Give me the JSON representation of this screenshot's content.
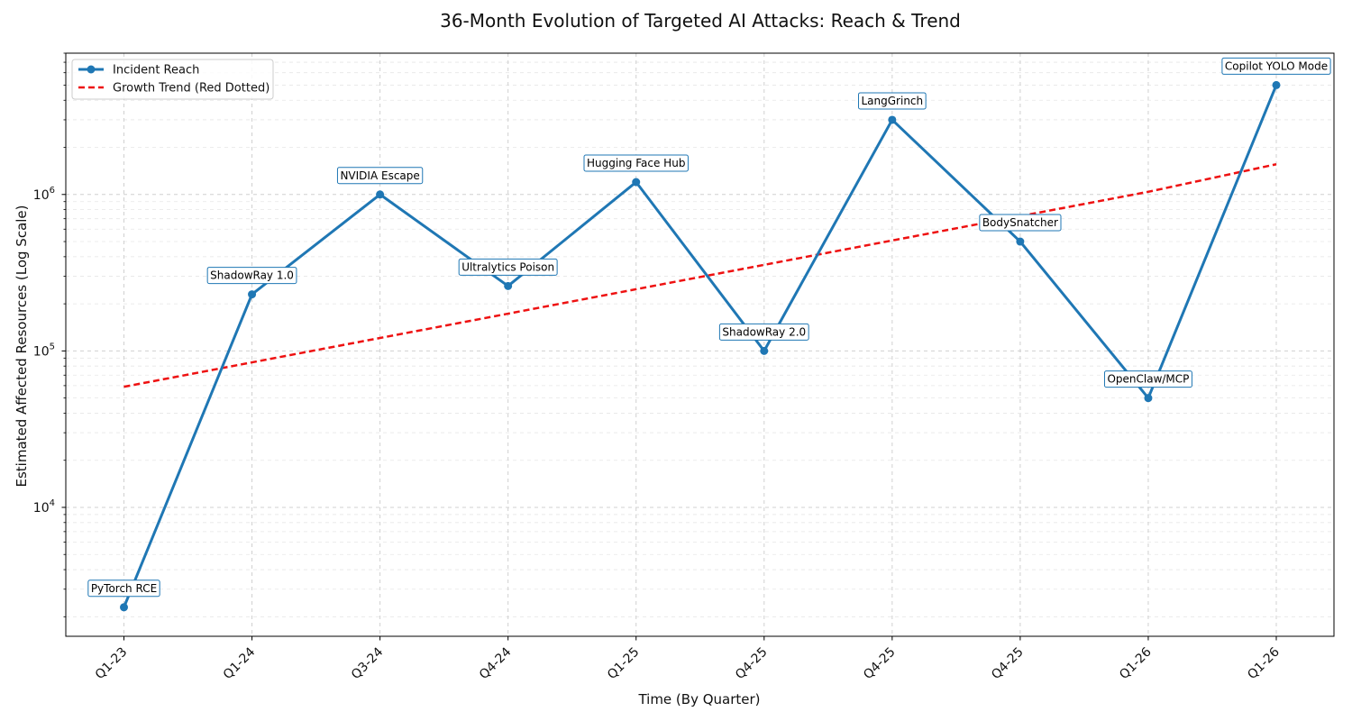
{
  "chart_data": {
    "type": "line",
    "title": "36-Month Evolution of Targeted AI Attacks: Reach & Trend",
    "xlabel": "Time (By Quarter)",
    "ylabel": "Estimated Affected Resources (Log Scale)",
    "y_scale": "log",
    "ylim": [
      1500,
      8000000
    ],
    "categories": [
      "Q1-23",
      "Q1-24",
      "Q3-24",
      "Q4-24",
      "Q1-25",
      "Q4-25",
      "Q4-25",
      "Q4-25",
      "Q1-26",
      "Q1-26"
    ],
    "y_ticks": [
      {
        "value": 10000,
        "base": "10",
        "exp": "4"
      },
      {
        "value": 100000,
        "base": "10",
        "exp": "5"
      },
      {
        "value": 1000000,
        "base": "10",
        "exp": "6"
      }
    ],
    "grid": true,
    "legend_position": "top-left",
    "series": [
      {
        "name": "Incident Reach",
        "style": "solid-marker",
        "color": "#1f77b4",
        "values": [
          2300,
          230000,
          1000000,
          260000,
          1200000,
          100000,
          3000000,
          500000,
          50000,
          5000000
        ],
        "annotations": [
          "PyTorch RCE",
          "ShadowRay 1.0",
          "NVIDIA Escape",
          "Ultralytics Poison",
          "Hugging Face Hub",
          "ShadowRay 2.0",
          "LangGrinch",
          "BodySnatcher",
          "OpenClaw/MCP",
          "Copilot YOLO Mode"
        ]
      },
      {
        "name": "Growth Trend (Red Dotted)",
        "style": "dashed",
        "color": "#ee1111",
        "values": [
          59000,
          84500,
          121000,
          173000,
          248000,
          355000,
          508000,
          727000,
          1040000,
          1560000
        ]
      }
    ]
  }
}
